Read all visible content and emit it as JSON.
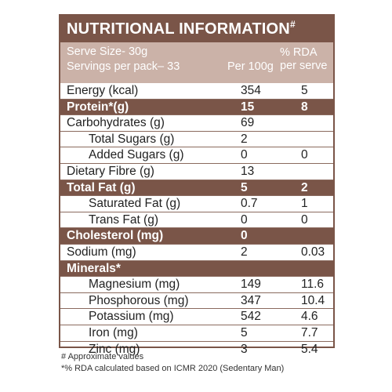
{
  "title": "NUTRITIONAL INFORMATION",
  "title_mark": "#",
  "header": {
    "serve_size": "Serve Size- 30g",
    "servings": "Servings per pack– 33",
    "col_per100": "Per 100g",
    "col_rda_line1": "% RDA",
    "col_rda_line2": "per serve"
  },
  "rows": [
    {
      "name": "Energy (kcal)",
      "per100": "354",
      "rda": "5"
    },
    {
      "name": "Protein*(g)",
      "per100": "15",
      "rda": "8"
    },
    {
      "name": "Carbohydrates (g)",
      "per100": "69",
      "rda": ""
    },
    {
      "name": "Total Sugars (g)",
      "per100": "2",
      "rda": ""
    },
    {
      "name": "Added Sugars (g)",
      "per100": "0",
      "rda": "0"
    },
    {
      "name": "Dietary Fibre (g)",
      "per100": "13",
      "rda": ""
    },
    {
      "name": "Total Fat (g)",
      "per100": "5",
      "rda": "2"
    },
    {
      "name": "Saturated Fat (g)",
      "per100": "0.7",
      "rda": "1"
    },
    {
      "name": "Trans Fat (g)",
      "per100": "0",
      "rda": "0"
    },
    {
      "name": "Cholesterol (mg)",
      "per100": "0",
      "rda": ""
    },
    {
      "name": "Sodium (mg)",
      "per100": "2",
      "rda": "0.03"
    },
    {
      "name": "Minerals*",
      "per100": "",
      "rda": ""
    },
    {
      "name": "Magnesium (mg)",
      "per100": "149",
      "rda": "11.6"
    },
    {
      "name": "Phosphorous (mg)",
      "per100": "347",
      "rda": "10.4"
    },
    {
      "name": "Potassium (mg)",
      "per100": "542",
      "rda": "4.6"
    },
    {
      "name": "Iron (mg)",
      "per100": "5",
      "rda": "7.7"
    },
    {
      "name": "Zinc (mg)",
      "per100": "3",
      "rda": "5.4"
    }
  ],
  "footnotes": {
    "line1": "# Approximate values",
    "line2": "*% RDA calculated based on ICMR 2020 (Sedentary Man)"
  },
  "colors": {
    "band": "#7a5548",
    "subheader": "#cbb2a8"
  }
}
